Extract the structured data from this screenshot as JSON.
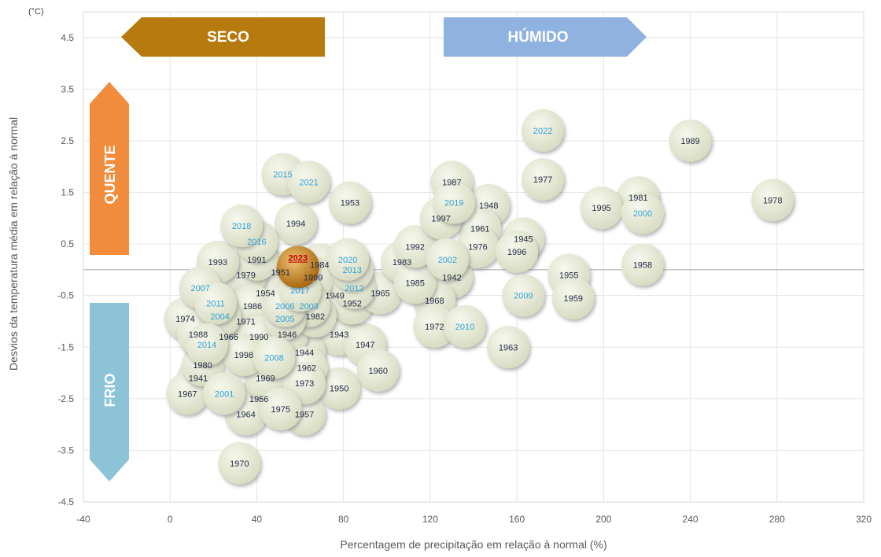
{
  "chart_data": {
    "type": "scatter",
    "title": "",
    "unit_label": "(°C)",
    "xlabel": "Percentagem de precipitação em relação à normal (%)",
    "ylabel": "Desvios da temperatura média em relação à normal",
    "xlim": [
      -40,
      320
    ],
    "ylim": [
      -4.5,
      5.0
    ],
    "x_ticks": [
      "-40",
      "0",
      "40",
      "80",
      "120",
      "160",
      "200",
      "240",
      "280",
      "320"
    ],
    "y_ticks": [
      "4.5",
      "3.5",
      "2.5",
      "1.5",
      "0.5",
      "-0.5",
      "-1.5",
      "-2.5",
      "-3.5",
      "-4.5"
    ],
    "grid": true,
    "highlight_color": "#c0000b",
    "bubble_color": "#e6ead3",
    "highlight_bubble_color": "#c58a26",
    "recent_label_color": "#2ea3d9",
    "label_color": "#1f2a44",
    "quadrant_labels": [
      {
        "text": "SECO",
        "color": "#b77a0e"
      },
      {
        "text": "HÚMIDO",
        "color": "#8fb2e0"
      },
      {
        "text": "QUENTE",
        "color": "#f08c3c"
      },
      {
        "text": "FRIO",
        "color": "#8dc3d6"
      }
    ],
    "points": [
      {
        "label": "2023",
        "x": 59,
        "y": 0.05,
        "highlight": true
      },
      {
        "label": "2022",
        "x": 172,
        "y": 2.7,
        "recent": true
      },
      {
        "label": "2021",
        "x": 64,
        "y": 1.7,
        "recent": true
      },
      {
        "label": "2020",
        "x": 82,
        "y": 0.2,
        "recent": true
      },
      {
        "label": "2019",
        "x": 131,
        "y": 1.3,
        "recent": true
      },
      {
        "label": "2018",
        "x": 33,
        "y": 0.85,
        "recent": true
      },
      {
        "label": "2017",
        "x": 60,
        "y": -0.4,
        "recent": true
      },
      {
        "label": "2016",
        "x": 40,
        "y": 0.55,
        "recent": true
      },
      {
        "label": "2015",
        "x": 52,
        "y": 1.85,
        "recent": true
      },
      {
        "label": "2014",
        "x": 17,
        "y": -1.45,
        "recent": true
      },
      {
        "label": "2013",
        "x": 84,
        "y": 0.0,
        "recent": true
      },
      {
        "label": "2012",
        "x": 85,
        "y": -0.35,
        "recent": true
      },
      {
        "label": "2011",
        "x": 21,
        "y": -0.65,
        "recent": true
      },
      {
        "label": "2010",
        "x": 136,
        "y": -1.1,
        "recent": true
      },
      {
        "label": "2009",
        "x": 163,
        "y": -0.5,
        "recent": true
      },
      {
        "label": "2008",
        "x": 48,
        "y": -1.7,
        "recent": true
      },
      {
        "label": "2007",
        "x": 14,
        "y": -0.35,
        "recent": true
      },
      {
        "label": "2006",
        "x": 53,
        "y": -0.7,
        "recent": true
      },
      {
        "label": "2005",
        "x": 53,
        "y": -0.95,
        "recent": true
      },
      {
        "label": "2004",
        "x": 23,
        "y": -0.9,
        "recent": true
      },
      {
        "label": "2003",
        "x": 64,
        "y": -0.7,
        "recent": true
      },
      {
        "label": "2002",
        "x": 128,
        "y": 0.2,
        "recent": true
      },
      {
        "label": "2001",
        "x": 25,
        "y": -2.4,
        "recent": true
      },
      {
        "label": "2000",
        "x": 218,
        "y": 1.1,
        "recent": true
      },
      {
        "label": "1999",
        "x": 66,
        "y": -0.15
      },
      {
        "label": "1998",
        "x": 34,
        "y": -1.65
      },
      {
        "label": "1997",
        "x": 125,
        "y": 1.0
      },
      {
        "label": "1996",
        "x": 160,
        "y": 0.35
      },
      {
        "label": "1995",
        "x": 199,
        "y": 1.2
      },
      {
        "label": "1994",
        "x": 58,
        "y": 0.9
      },
      {
        "label": "1993",
        "x": 22,
        "y": 0.15
      },
      {
        "label": "1992",
        "x": 113,
        "y": 0.45
      },
      {
        "label": "1991",
        "x": 40,
        "y": 0.2
      },
      {
        "label": "1990",
        "x": 41,
        "y": -1.3
      },
      {
        "label": "1989",
        "x": 240,
        "y": 2.5
      },
      {
        "label": "1988",
        "x": 13,
        "y": -1.25
      },
      {
        "label": "1987",
        "x": 130,
        "y": 1.7
      },
      {
        "label": "1986",
        "x": 38,
        "y": -0.7
      },
      {
        "label": "1985",
        "x": 113,
        "y": -0.25
      },
      {
        "label": "1984",
        "x": 69,
        "y": 0.1
      },
      {
        "label": "1983",
        "x": 107,
        "y": 0.15
      },
      {
        "label": "1982",
        "x": 67,
        "y": -0.9
      },
      {
        "label": "1981",
        "x": 216,
        "y": 1.4
      },
      {
        "label": "1980",
        "x": 15,
        "y": -1.85
      },
      {
        "label": "1979",
        "x": 35,
        "y": -0.1
      },
      {
        "label": "1978",
        "x": 278,
        "y": 1.35
      },
      {
        "label": "1977",
        "x": 172,
        "y": 1.75
      },
      {
        "label": "1976",
        "x": 142,
        "y": 0.45
      },
      {
        "label": "1975",
        "x": 51,
        "y": -2.7
      },
      {
        "label": "1974",
        "x": 7,
        "y": -0.95
      },
      {
        "label": "1973",
        "x": 62,
        "y": -2.2
      },
      {
        "label": "1972",
        "x": 122,
        "y": -1.1
      },
      {
        "label": "1971",
        "x": 35,
        "y": -1.0
      },
      {
        "label": "1970",
        "x": 32,
        "y": -3.75
      },
      {
        "label": "1969",
        "x": 44,
        "y": -2.1
      },
      {
        "label": "1968",
        "x": 122,
        "y": -0.6
      },
      {
        "label": "1967",
        "x": 8,
        "y": -2.4
      },
      {
        "label": "1966",
        "x": 27,
        "y": -1.3
      },
      {
        "label": "1965",
        "x": 97,
        "y": -0.45
      },
      {
        "label": "1964",
        "x": 35,
        "y": -2.8
      },
      {
        "label": "1963",
        "x": 156,
        "y": -1.5
      },
      {
        "label": "1962",
        "x": 63,
        "y": -1.9
      },
      {
        "label": "1961",
        "x": 143,
        "y": 0.8
      },
      {
        "label": "1960",
        "x": 96,
        "y": -1.95
      },
      {
        "label": "1959",
        "x": 186,
        "y": -0.55
      },
      {
        "label": "1958",
        "x": 218,
        "y": 0.1
      },
      {
        "label": "1957",
        "x": 62,
        "y": -2.8
      },
      {
        "label": "1956",
        "x": 41,
        "y": -2.5
      },
      {
        "label": "1955",
        "x": 184,
        "y": -0.1
      },
      {
        "label": "1954",
        "x": 44,
        "y": -0.45
      },
      {
        "label": "1953",
        "x": 83,
        "y": 1.3
      },
      {
        "label": "1952",
        "x": 84,
        "y": -0.65
      },
      {
        "label": "1951",
        "x": 51,
        "y": -0.05
      },
      {
        "label": "1950",
        "x": 78,
        "y": -2.3
      },
      {
        "label": "1949",
        "x": 76,
        "y": -0.5
      },
      {
        "label": "1948",
        "x": 147,
        "y": 1.25
      },
      {
        "label": "1947",
        "x": 90,
        "y": -1.45
      },
      {
        "label": "1946",
        "x": 54,
        "y": -1.25
      },
      {
        "label": "1945",
        "x": 163,
        "y": 0.6
      },
      {
        "label": "1944",
        "x": 62,
        "y": -1.6
      },
      {
        "label": "1943",
        "x": 78,
        "y": -1.25
      },
      {
        "label": "1942",
        "x": 130,
        "y": -0.15
      },
      {
        "label": "1941",
        "x": 13,
        "y": -2.1
      }
    ]
  }
}
